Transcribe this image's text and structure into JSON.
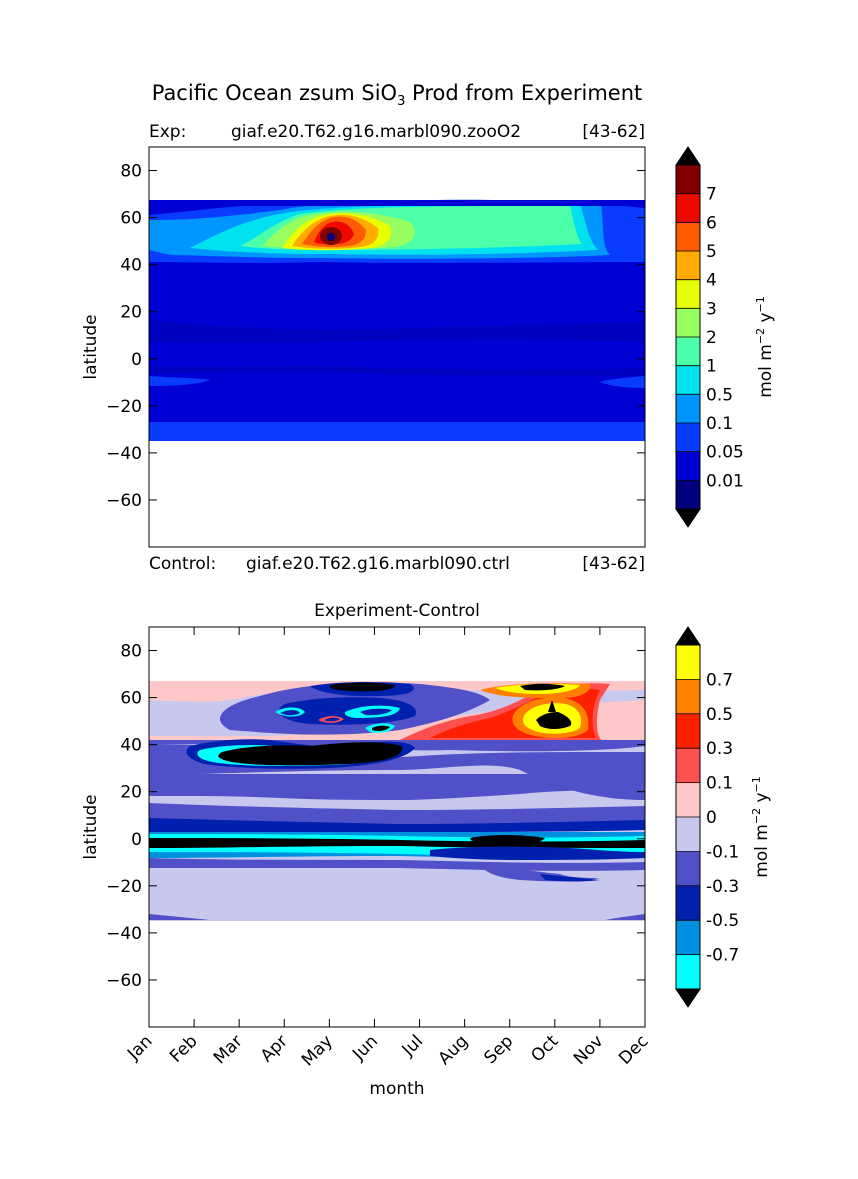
{
  "figure": {
    "title_main": "Pacific Ocean zsum SiO",
    "title_sub": "3",
    "title_tail": " Prod from Experiment"
  },
  "top": {
    "exp_label": "Exp:",
    "exp_name": "giaf.e20.T62.g16.marbl090.zooO2",
    "exp_range": "[43-62]",
    "control_label": "Control:",
    "control_name": "giaf.e20.T62.g16.marbl090.ctrl",
    "control_range": "[43-62]"
  },
  "bottom": {
    "title": "Experiment-Control"
  },
  "chart_data": [
    {
      "type": "heatmap",
      "title": "Exp:      giaf.e20.T62.g16.marbl090.zooO2   [43-62]",
      "xlabel": "",
      "ylabel": "latitude",
      "x_range": [
        0,
        11
      ],
      "y_range": [
        -80,
        90
      ],
      "yticks": [
        80,
        60,
        40,
        20,
        0,
        -20,
        -40,
        -60
      ],
      "colorbar": {
        "label": "mol m-2 y-1",
        "label_main": "mol m",
        "label_sup1": "−2",
        "label_mid": " y",
        "label_sup2": "−1",
        "ticks": [
          "0.01",
          "0.05",
          "0.1",
          "0.5",
          "1",
          "2",
          "3",
          "4",
          "5",
          "6",
          "7"
        ],
        "colors": [
          "#00007f",
          "#0000d6",
          "#0a3cff",
          "#0096ff",
          "#00e1f0",
          "#4cffa9",
          "#96ff5f",
          "#e8ff00",
          "#ffab00",
          "#ff5a00",
          "#f10700",
          "#800000"
        ],
        "extend": "both"
      },
      "data_extent_lat": [
        -34,
        67
      ]
    },
    {
      "type": "heatmap",
      "title": "Experiment-Control",
      "xlabel": "month",
      "ylabel": "latitude",
      "x_categories": [
        "Jan",
        "Feb",
        "Mar",
        "Apr",
        "May",
        "Jun",
        "Jul",
        "Aug",
        "Sep",
        "Oct",
        "Nov",
        "Dec"
      ],
      "y_range": [
        -80,
        90
      ],
      "yticks": [
        80,
        60,
        40,
        20,
        0,
        -20,
        -40,
        -60
      ],
      "colorbar": {
        "label": "mol m-2 y-1",
        "label_main": "mol m",
        "label_sup1": "−2",
        "label_mid": " y",
        "label_sup2": "−1",
        "ticks": [
          "-0.7",
          "-0.5",
          "-0.3",
          "-0.1",
          "0",
          "0.1",
          "0.3",
          "0.5",
          "0.7"
        ],
        "colors": [
          "#00ffff",
          "#0090e0",
          "#0020b0",
          "#5050c8",
          "#c8c8ee",
          "#ffc8c8",
          "#ff5050",
          "#ff2000",
          "#ff8000",
          "#ffff00"
        ],
        "extend": "both"
      },
      "data_extent_lat": [
        -34,
        67
      ]
    }
  ],
  "colors": {
    "deep_navy": "#00007f",
    "blue": "#0000d6",
    "light_blue": "#0a3cff",
    "mid_lavender": "#5050c8",
    "pale_lavender": "#c8c8ee",
    "pale_pink": "#ffc8c8",
    "black": "#000000"
  }
}
